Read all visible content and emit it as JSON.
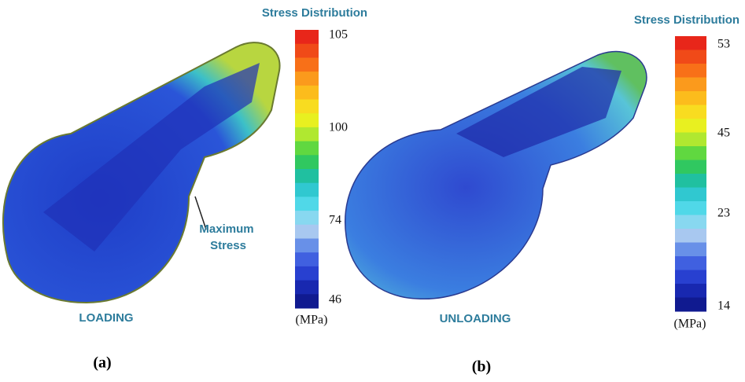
{
  "panels": [
    {
      "title": "Stress Distribution",
      "scale_labels": [
        "105",
        "100",
        "74",
        "46"
      ],
      "unit": "(MPa)",
      "state": "LOADING",
      "annotation": [
        "Maximum",
        "Stress"
      ],
      "caption": "(a)"
    },
    {
      "title": "Stress Distribution",
      "scale_labels": [
        "53",
        "45",
        "23",
        "14"
      ],
      "unit": "(MPa)",
      "state": "UNLOADING",
      "caption": "(b)"
    }
  ]
}
